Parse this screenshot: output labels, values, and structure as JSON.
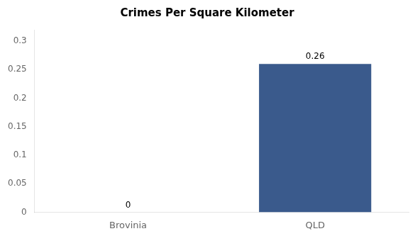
{
  "chart_data": {
    "type": "bar",
    "title": "Crimes Per Square Kilometer",
    "categories": [
      "Brovinia",
      "QLD"
    ],
    "values": [
      0,
      0.26
    ],
    "color": "#3a5a8c",
    "ylim": [
      0,
      0.32
    ],
    "yticks": [
      0,
      0.05,
      0.1,
      0.15,
      0.2,
      0.25,
      0.3
    ],
    "grid": false,
    "data_labels": true
  }
}
